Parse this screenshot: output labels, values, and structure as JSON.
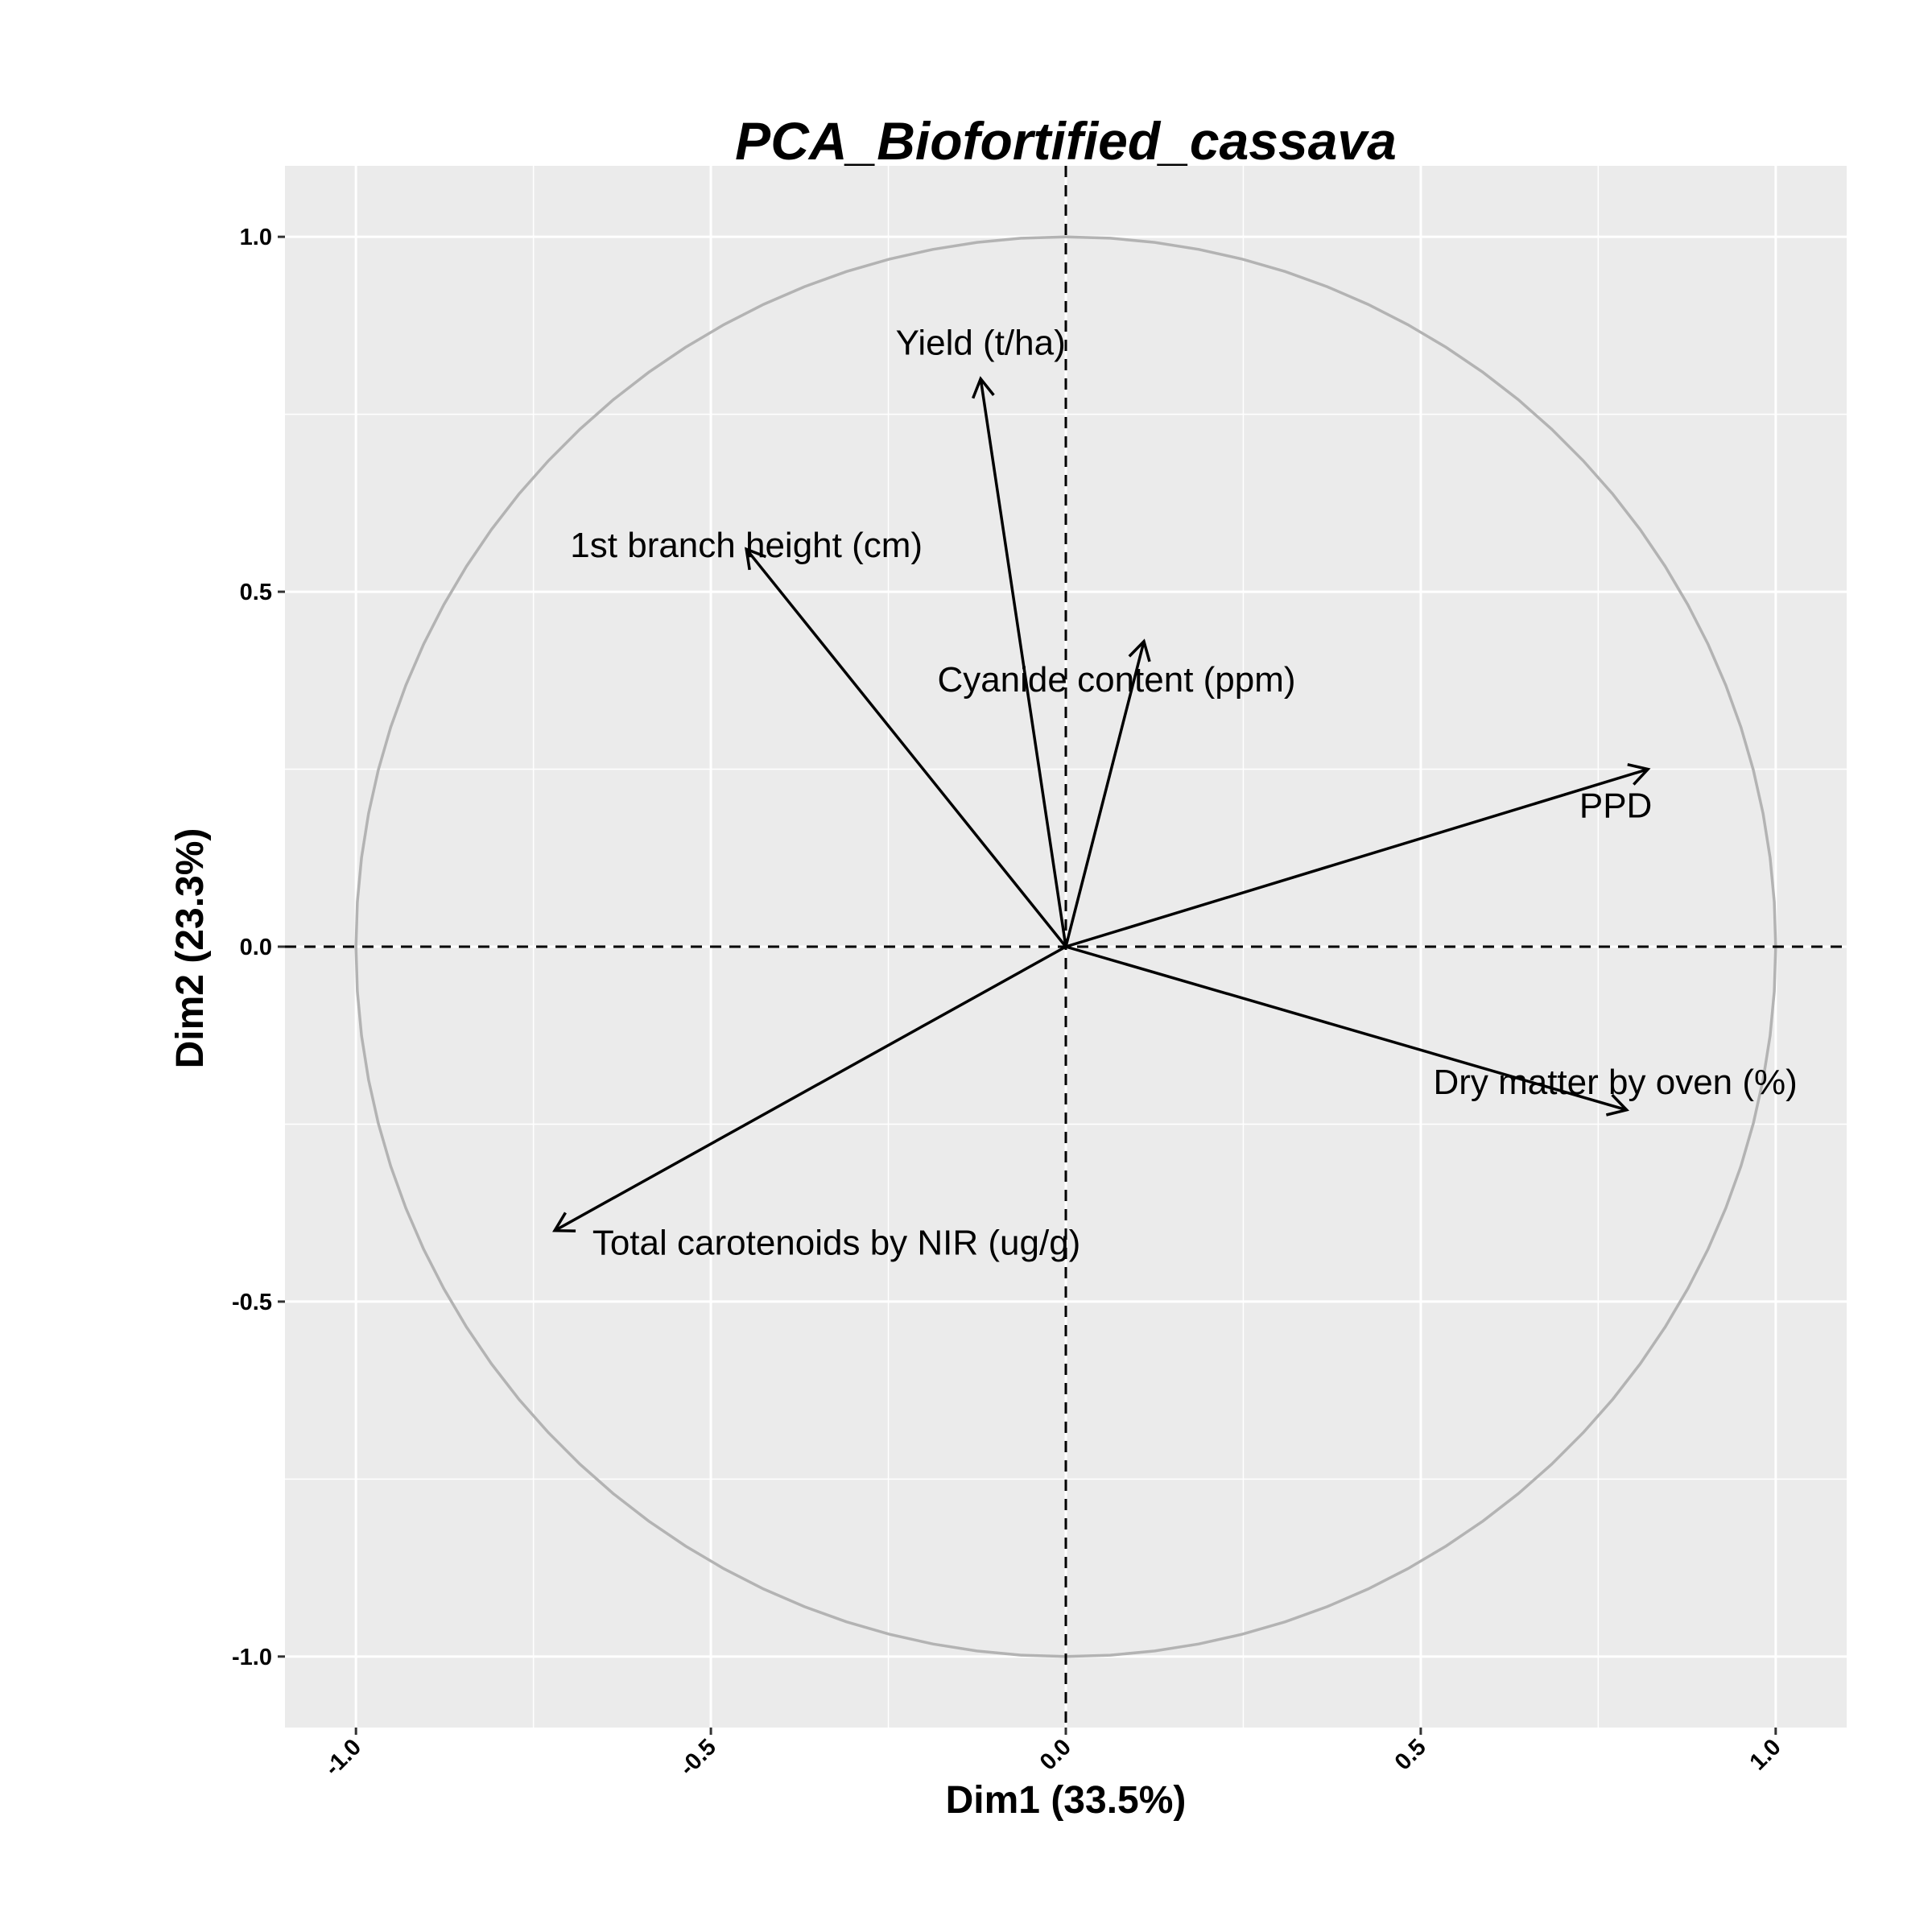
{
  "chart_data": {
    "type": "scatter",
    "subtype": "pca-variable-correlation-circle",
    "title": "PCA_Biofortified_cassava",
    "xlabel": "Dim1 (33.5%)",
    "ylabel": "Dim2 (23.3%)",
    "xlim": [
      -1.1,
      1.1
    ],
    "ylim": [
      -1.1,
      1.1
    ],
    "xticks": [
      -1.0,
      -0.5,
      0.0,
      0.5,
      1.0
    ],
    "xtick_labels": [
      "-1.0",
      "-0.5",
      "0.0",
      "0.5",
      "1.0"
    ],
    "yticks": [
      -1.0,
      -0.5,
      0.0,
      0.5,
      1.0
    ],
    "ytick_labels": [
      "-1.0",
      "-0.5",
      "0.0",
      "0.5",
      "1.0"
    ],
    "grid": true,
    "unit_circle": true,
    "reference_lines": "dashed at x=0 and y=0",
    "colors": {
      "panel_background": "#ebebeb",
      "grid": "#ffffff",
      "circle": "#b3b3b3",
      "arrows": "#000000"
    },
    "variables": [
      {
        "name": "Yield (t/ha)",
        "x": -0.12,
        "y": 0.8
      },
      {
        "name": "1st branch height (cm)",
        "x": -0.45,
        "y": 0.56
      },
      {
        "name": "Cyanide content (ppm)",
        "x": 0.11,
        "y": 0.43
      },
      {
        "name": "PPD",
        "x": 0.82,
        "y": 0.25
      },
      {
        "name": "Dry matter by oven (%)",
        "x": 0.79,
        "y": -0.23
      },
      {
        "name": "Total carotenoids by NIR (ug/g)",
        "x": -0.72,
        "y": -0.4
      }
    ]
  }
}
